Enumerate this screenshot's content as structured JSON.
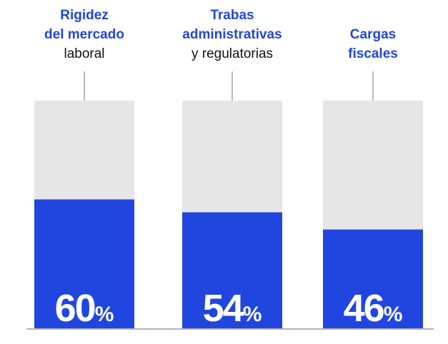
{
  "chart_data": {
    "type": "bar",
    "categories": [
      [
        "Rigidez",
        "del mercado",
        "laboral"
      ],
      [
        "Trabas",
        "administrativas",
        "y regulatorias"
      ],
      [
        "Cargas",
        "fiscales"
      ]
    ],
    "category_bold_lines": 2,
    "values": [
      60,
      54,
      46
    ],
    "value_labels": [
      "60%",
      "54%",
      "46%"
    ],
    "color": "#2146e0",
    "track_color": "#e6e6e6",
    "label_color": "#2146d9",
    "ylim": [
      0,
      106
    ]
  }
}
